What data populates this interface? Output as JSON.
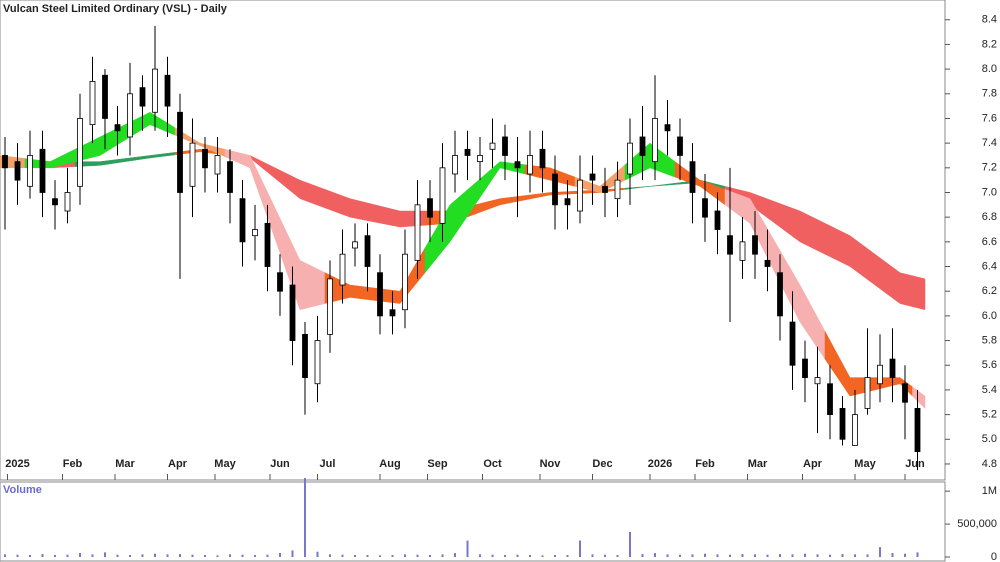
{
  "chart_data": {
    "type": "candlestick",
    "title": "Vulcan Steel Limited Ordinary (VSL) - Daily",
    "xlim": [
      0,
      378
    ],
    "xticks": [
      {
        "value": 7,
        "label": "2025"
      },
      {
        "value": 29,
        "label": "Feb"
      },
      {
        "value": 50,
        "label": "Mar"
      },
      {
        "value": 71,
        "label": "Apr"
      },
      {
        "value": 90,
        "label": "May"
      },
      {
        "value": 112,
        "label": "Jun"
      },
      {
        "value": 131,
        "label": "Jul"
      },
      {
        "value": 156,
        "label": "Aug"
      },
      {
        "value": 175,
        "label": "Sep"
      },
      {
        "value": 197,
        "label": "Oct"
      },
      {
        "value": 220,
        "label": "Nov"
      },
      {
        "value": 241,
        "label": "Dec"
      },
      {
        "value": 264,
        "label": "2026"
      },
      {
        "value": 282,
        "label": "Feb"
      },
      {
        "value": 303,
        "label": "Mar"
      },
      {
        "value": 325,
        "label": "Apr"
      },
      {
        "value": 346,
        "label": "May"
      },
      {
        "value": 366,
        "label": "Jun"
      }
    ],
    "ylim": [
      4.67,
      8.56
    ],
    "yticks": [
      4.8,
      {
        "value": 5.0,
        "label": "5.0"
      },
      5.2,
      5.4,
      5.6,
      5.8,
      {
        "value": 6.0,
        "label": "6.0"
      },
      6.2,
      6.4,
      6.6,
      6.8,
      {
        "value": 7.0,
        "label": "7.0"
      },
      7.2,
      7.4,
      7.6,
      7.8,
      {
        "value": 8.0,
        "label": "8.0"
      },
      8.2,
      8.4
    ],
    "x": [
      2,
      7,
      12,
      17,
      22,
      27,
      32,
      37,
      42,
      47,
      52,
      57,
      62,
      67,
      72,
      77,
      82,
      87,
      92,
      97,
      102,
      107,
      112,
      117,
      122,
      127,
      132,
      137,
      142,
      147,
      152,
      157,
      162,
      167,
      172,
      177,
      182,
      187,
      192,
      197,
      202,
      207,
      212,
      217,
      222,
      227,
      232,
      237,
      242,
      247,
      252,
      257,
      262,
      267,
      272,
      277,
      282,
      287,
      292,
      297,
      302,
      307,
      312,
      317,
      322,
      327,
      332,
      337,
      342,
      347,
      352,
      357,
      362,
      367
    ],
    "open": [
      7.3,
      7.25,
      7.05,
      7.35,
      6.95,
      6.85,
      7.05,
      7.55,
      7.95,
      7.55,
      7.45,
      7.85,
      7.65,
      7.95,
      7.65,
      7.05,
      7.35,
      7.15,
      7.25,
      6.95,
      6.65,
      6.75,
      6.35,
      6.25,
      5.85,
      5.45,
      5.85,
      6.25,
      6.55,
      6.65,
      6.35,
      6.05,
      6.05,
      6.45,
      6.95,
      6.75,
      7.15,
      7.35,
      7.25,
      7.35,
      7.45,
      7.25,
      7.15,
      7.35,
      7.15,
      6.95,
      6.85,
      7.15,
      7.05,
      6.95,
      7.15,
      7.45,
      7.25,
      7.55,
      7.45,
      7.25,
      6.95,
      6.85,
      6.65,
      6.45,
      6.65,
      6.45,
      6.35,
      5.95,
      5.65,
      5.45,
      5.45,
      5.25,
      4.95,
      5.25,
      5.45,
      5.65,
      5.45,
      5.25
    ],
    "high": [
      7.45,
      7.4,
      7.5,
      7.5,
      7.1,
      7.2,
      7.8,
      8.1,
      8.0,
      7.7,
      8.05,
      7.95,
      8.35,
      8.1,
      7.8,
      7.6,
      7.45,
      7.45,
      7.35,
      7.1,
      6.9,
      6.9,
      6.5,
      6.4,
      5.95,
      6.0,
      6.45,
      6.7,
      6.75,
      6.75,
      6.5,
      6.2,
      6.7,
      7.1,
      7.1,
      7.4,
      7.5,
      7.5,
      7.45,
      7.6,
      7.55,
      7.45,
      7.5,
      7.5,
      7.3,
      7.1,
      7.3,
      7.3,
      7.2,
      7.25,
      7.6,
      7.7,
      7.95,
      7.75,
      7.6,
      7.4,
      7.15,
      7.0,
      7.2,
      6.8,
      6.85,
      6.7,
      6.5,
      6.2,
      5.8,
      5.75,
      5.6,
      5.35,
      5.4,
      5.9,
      5.85,
      5.9,
      5.6,
      5.4
    ],
    "low": [
      6.7,
      6.9,
      6.95,
      6.8,
      6.7,
      6.75,
      6.9,
      7.4,
      7.35,
      7.3,
      7.3,
      7.5,
      7.5,
      7.45,
      6.3,
      6.8,
      7.0,
      7.0,
      6.75,
      6.4,
      6.45,
      6.2,
      6.0,
      5.6,
      5.2,
      5.3,
      5.7,
      6.1,
      6.4,
      6.2,
      5.85,
      5.85,
      5.9,
      6.3,
      6.6,
      6.6,
      7.0,
      7.1,
      7.1,
      7.2,
      7.1,
      6.8,
      7.0,
      7.0,
      6.7,
      6.7,
      6.75,
      6.9,
      6.8,
      6.8,
      6.9,
      7.1,
      7.1,
      7.3,
      7.1,
      6.75,
      6.6,
      6.5,
      5.95,
      6.3,
      6.3,
      6.2,
      5.8,
      5.4,
      5.3,
      5.05,
      5.0,
      4.95,
      4.95,
      5.2,
      5.3,
      5.3,
      5.0,
      4.75
    ],
    "close": [
      7.2,
      7.1,
      7.3,
      7.0,
      6.9,
      7.0,
      7.6,
      7.9,
      7.6,
      7.5,
      7.8,
      7.7,
      8.0,
      7.7,
      7.0,
      7.4,
      7.2,
      7.3,
      7.0,
      6.6,
      6.7,
      6.4,
      6.2,
      5.8,
      5.5,
      5.8,
      6.3,
      6.5,
      6.6,
      6.4,
      6.0,
      6.0,
      6.5,
      6.9,
      6.8,
      7.2,
      7.3,
      7.3,
      7.3,
      7.4,
      7.3,
      7.2,
      7.3,
      7.2,
      6.9,
      6.9,
      7.1,
      7.1,
      7.0,
      7.1,
      7.4,
      7.3,
      7.6,
      7.5,
      7.3,
      7.0,
      6.8,
      6.7,
      6.5,
      6.6,
      6.5,
      6.4,
      6.0,
      5.6,
      5.5,
      5.5,
      5.2,
      5.0,
      5.2,
      5.5,
      5.6,
      5.5,
      5.3,
      4.9
    ],
    "bands": [
      {
        "x": [
          0,
          20,
          40,
          60,
          80,
          100,
          120,
          140,
          160,
          180,
          200,
          220,
          240,
          260,
          280,
          300,
          320,
          340,
          360,
          370
        ],
        "upper": [
          7.28,
          7.25,
          7.25,
          7.3,
          7.35,
          7.3,
          7.1,
          6.95,
          6.85,
          6.85,
          6.95,
          7.0,
          7.02,
          7.05,
          7.1,
          7.0,
          6.85,
          6.65,
          6.35,
          6.3
        ],
        "lower": [
          7.22,
          7.2,
          7.22,
          7.28,
          7.33,
          7.28,
          6.95,
          6.8,
          6.72,
          6.75,
          6.9,
          6.98,
          7.0,
          7.05,
          7.08,
          6.9,
          6.6,
          6.4,
          6.1,
          6.05
        ],
        "colors": [
          "#f06060",
          "#f06060",
          "#2e9e5e",
          "#2e9e5e",
          "#f26522",
          "#f06060",
          "#f06060",
          "#f06060",
          "#f06060",
          "#f26522",
          "#f26522",
          "#f26522",
          "#f26522",
          "#2e9e5e",
          "#2e9e5e",
          "#f06060",
          "#f06060",
          "#f06060",
          "#f06060",
          "#f06060"
        ]
      },
      {
        "x": [
          0,
          20,
          40,
          60,
          80,
          100,
          120,
          140,
          160,
          180,
          200,
          220,
          240,
          260,
          280,
          300,
          320,
          340,
          360,
          370
        ],
        "upper": [
          7.3,
          7.25,
          7.45,
          7.65,
          7.4,
          7.3,
          6.45,
          6.25,
          6.2,
          6.9,
          7.25,
          7.2,
          7.05,
          7.4,
          7.1,
          6.95,
          6.25,
          5.5,
          5.5,
          5.35
        ],
        "lower": [
          7.2,
          7.2,
          7.3,
          7.55,
          7.38,
          7.2,
          6.05,
          6.15,
          6.1,
          6.6,
          7.2,
          7.1,
          7.0,
          7.2,
          7.05,
          6.75,
          5.95,
          5.35,
          5.45,
          5.25
        ],
        "colors": [
          "#f4a06a",
          "#22dd22",
          "#22dd22",
          "#22dd22",
          "#f4a06a",
          "#f7b0b0",
          "#f7b0b0",
          "#f26522",
          "#f26522",
          "#22dd22",
          "#22dd22",
          "#f26522",
          "#f4a06a",
          "#22dd22",
          "#f26522",
          "#f7b0b0",
          "#f7b0b0",
          "#f26522",
          "#f26522",
          "#f7b0b0"
        ]
      }
    ],
    "volume": {
      "label": "Volume",
      "color": "#7777cc",
      "ylim": [
        0,
        1200000
      ],
      "yticks": [
        0,
        {
          "value": 500000,
          "label": "500,000"
        },
        {
          "value": 1000000,
          "label": "1M"
        }
      ],
      "values": [
        40000,
        35000,
        30000,
        45000,
        30000,
        35000,
        60000,
        40000,
        70000,
        35000,
        30000,
        40000,
        50000,
        40000,
        45000,
        35000,
        30000,
        25000,
        40000,
        35000,
        30000,
        35000,
        60000,
        100000,
        1200000,
        80000,
        40000,
        35000,
        30000,
        30000,
        25000,
        30000,
        40000,
        35000,
        30000,
        40000,
        60000,
        250000,
        40000,
        35000,
        30000,
        35000,
        30000,
        25000,
        30000,
        30000,
        250000,
        40000,
        35000,
        30000,
        380000,
        45000,
        60000,
        40000,
        35000,
        40000,
        50000,
        40000,
        35000,
        45000,
        40000,
        35000,
        45000,
        40000,
        50000,
        40000,
        35000,
        45000,
        40000,
        40000,
        150000,
        60000,
        50000,
        70000
      ]
    }
  }
}
